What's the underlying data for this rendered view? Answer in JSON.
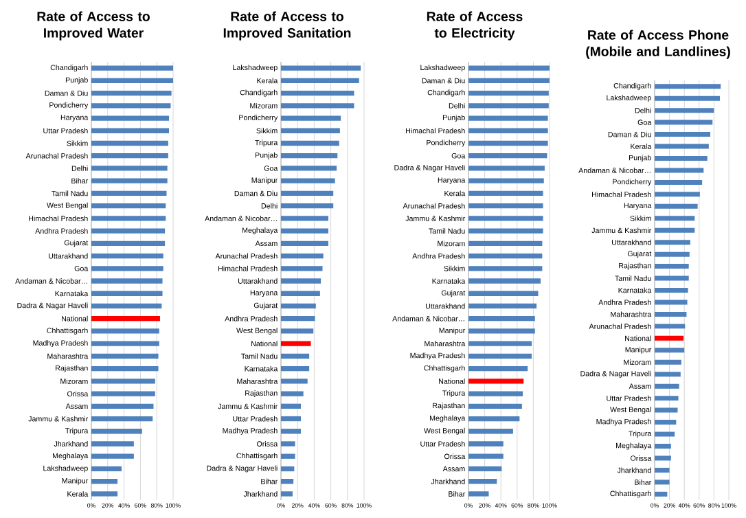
{
  "chart_data": [
    {
      "type": "bar",
      "orientation": "horizontal",
      "title": "Rate of Access to Improved Water",
      "grid": "x",
      "xlim": [
        0,
        100
      ],
      "xticks": [
        {
          "value": 0,
          "label": "0%"
        },
        {
          "value": 20,
          "label": "20%"
        },
        {
          "value": 40,
          "label": "40%"
        },
        {
          "value": 60,
          "label": "60%"
        },
        {
          "value": 80,
          "label": "80%"
        },
        {
          "value": 100,
          "label": "100%"
        }
      ],
      "categories": [
        "Chandigarh",
        "Punjab",
        "Daman & Diu",
        "Pondicherry",
        "Haryana",
        "Uttar Pradesh",
        "Sikkim",
        "Arunachal Pradesh",
        "Delhi",
        "Bihar",
        "Tamil Nadu",
        "West Bengal",
        "Himachal Pradesh",
        "Andhra Pradesh",
        "Gujarat",
        "Uttarakhand",
        "Goa",
        "Andaman & Nicobar…",
        "Karnataka",
        "Dadra & Nagar Haveli",
        "National",
        "Chhattisgarh",
        "Madhya Pradesh",
        "Maharashtra",
        "Rajasthan",
        "Mizoram",
        "Orissa",
        "Assam",
        "Jammu & Kashmir",
        "Tripura",
        "Jharkhand",
        "Meghalaya",
        "Lakshadweep",
        "Manipur",
        "Kerala"
      ],
      "values": [
        100,
        100,
        98,
        97,
        95,
        95,
        94,
        94,
        93,
        93,
        92,
        91,
        91,
        90,
        90,
        88,
        88,
        87,
        87,
        86,
        84,
        83,
        83,
        82,
        82,
        78,
        78,
        76,
        75,
        62,
        52,
        52,
        37,
        32,
        32
      ],
      "colors": [
        "#4f81bd",
        "#4f81bd",
        "#4f81bd",
        "#4f81bd",
        "#4f81bd",
        "#4f81bd",
        "#4f81bd",
        "#4f81bd",
        "#4f81bd",
        "#4f81bd",
        "#4f81bd",
        "#4f81bd",
        "#4f81bd",
        "#4f81bd",
        "#4f81bd",
        "#4f81bd",
        "#4f81bd",
        "#4f81bd",
        "#4f81bd",
        "#4f81bd",
        "#ff0000",
        "#4f81bd",
        "#4f81bd",
        "#4f81bd",
        "#4f81bd",
        "#4f81bd",
        "#4f81bd",
        "#4f81bd",
        "#4f81bd",
        "#4f81bd",
        "#4f81bd",
        "#4f81bd",
        "#4f81bd",
        "#4f81bd",
        "#4f81bd"
      ]
    },
    {
      "type": "bar",
      "orientation": "horizontal",
      "title": "Rate of Access to Improved Sanitation",
      "grid": "x",
      "xlim": [
        0,
        100
      ],
      "xticks": [
        {
          "value": 0,
          "label": "0%"
        },
        {
          "value": 20,
          "label": "20%"
        },
        {
          "value": 40,
          "label": "40%"
        },
        {
          "value": 60,
          "label": "60%"
        },
        {
          "value": 80,
          "label": "80%"
        },
        {
          "value": 100,
          "label": "100%"
        }
      ],
      "categories": [
        "Lakshadweep",
        "Kerala",
        "Chandigarh",
        "Mizoram",
        "Pondicherry",
        "Sikkim",
        "Tripura",
        "Punjab",
        "Goa",
        "Manipur",
        "Daman & Diu",
        "Delhi",
        "Andaman & Nicobar…",
        "Meghalaya",
        "Assam",
        "Arunachal Pradesh",
        "Himachal Pradesh",
        "Uttarakhand",
        "Haryana",
        "Gujarat",
        "Andhra Pradesh",
        "West Bengal",
        "National",
        "Tamil Nadu",
        "Karnataka",
        "Maharashtra",
        "Rajasthan",
        "Jammu & Kashmir",
        "Uttar Pradesh",
        "Madhya Pradesh",
        "Orissa",
        "Chhattisgarh",
        "Dadra & Nagar Haveli",
        "Bihar",
        "Jharkhand"
      ],
      "values": [
        96,
        94,
        88,
        88,
        72,
        71,
        70,
        68,
        67,
        65,
        63,
        63,
        57,
        57,
        57,
        51,
        50,
        48,
        47,
        42,
        41,
        39,
        36,
        34,
        34,
        32,
        27,
        24,
        24,
        24,
        17,
        17,
        16,
        15,
        14
      ],
      "colors": [
        "#4f81bd",
        "#4f81bd",
        "#4f81bd",
        "#4f81bd",
        "#4f81bd",
        "#4f81bd",
        "#4f81bd",
        "#4f81bd",
        "#4f81bd",
        "#4f81bd",
        "#4f81bd",
        "#4f81bd",
        "#4f81bd",
        "#4f81bd",
        "#4f81bd",
        "#4f81bd",
        "#4f81bd",
        "#4f81bd",
        "#4f81bd",
        "#4f81bd",
        "#4f81bd",
        "#4f81bd",
        "#ff0000",
        "#4f81bd",
        "#4f81bd",
        "#4f81bd",
        "#4f81bd",
        "#4f81bd",
        "#4f81bd",
        "#4f81bd",
        "#4f81bd",
        "#4f81bd",
        "#4f81bd",
        "#4f81bd",
        "#4f81bd"
      ]
    },
    {
      "type": "bar",
      "orientation": "horizontal",
      "title": "Rate of Access to Electricity",
      "grid": "x",
      "xlim": [
        0,
        100
      ],
      "xticks": [
        {
          "value": 0,
          "label": "0%"
        },
        {
          "value": 20,
          "label": "20%"
        },
        {
          "value": 40,
          "label": "40%"
        },
        {
          "value": 60,
          "label": "60%"
        },
        {
          "value": 80,
          "label": "80%"
        },
        {
          "value": 100,
          "label": "100%"
        }
      ],
      "categories": [
        "Lakshadweep",
        "Daman & Diu",
        "Chandigarh",
        "Delhi",
        "Punjab",
        "Himachal Pradesh",
        "Pondicherry",
        "Goa",
        "Dadra & Nagar Haveli",
        "Haryana",
        "Kerala",
        "Arunachal Pradesh",
        "Jammu & Kashmir",
        "Tamil Nadu",
        "Mizoram",
        "Andhra Pradesh",
        "Sikkim",
        "Karnataka",
        "Gujarat",
        "Uttarakhand",
        "Andaman & Nicobar…",
        "Manipur",
        "Maharashtra",
        "Madhya Pradesh",
        "Chhattisgarh",
        "National",
        "Tripura",
        "Rajasthan",
        "Meghalaya",
        "West Bengal",
        "Uttar Pradesh",
        "Orissa",
        "Assam",
        "Jharkhand",
        "Bihar"
      ],
      "values": [
        100,
        100,
        99,
        99,
        98,
        98,
        98,
        97,
        94,
        93,
        92,
        92,
        92,
        92,
        91,
        91,
        91,
        89,
        86,
        84,
        82,
        82,
        78,
        78,
        73,
        68,
        67,
        66,
        63,
        55,
        43,
        43,
        41,
        35,
        25
      ],
      "colors": [
        "#4f81bd",
        "#4f81bd",
        "#4f81bd",
        "#4f81bd",
        "#4f81bd",
        "#4f81bd",
        "#4f81bd",
        "#4f81bd",
        "#4f81bd",
        "#4f81bd",
        "#4f81bd",
        "#4f81bd",
        "#4f81bd",
        "#4f81bd",
        "#4f81bd",
        "#4f81bd",
        "#4f81bd",
        "#4f81bd",
        "#4f81bd",
        "#4f81bd",
        "#4f81bd",
        "#4f81bd",
        "#4f81bd",
        "#4f81bd",
        "#4f81bd",
        "#ff0000",
        "#4f81bd",
        "#4f81bd",
        "#4f81bd",
        "#4f81bd",
        "#4f81bd",
        "#4f81bd",
        "#4f81bd",
        "#4f81bd",
        "#4f81bd"
      ]
    },
    {
      "type": "bar",
      "orientation": "horizontal",
      "title": "Rate of Access Phone (Mobile and Landlines)",
      "grid": "x",
      "xlim": [
        0,
        100
      ],
      "xticks": [
        {
          "value": 0,
          "label": "0%"
        },
        {
          "value": 20,
          "label": "20%"
        },
        {
          "value": 40,
          "label": "40%"
        },
        {
          "value": 60,
          "label": "60%"
        },
        {
          "value": 80,
          "label": "80%"
        },
        {
          "value": 100,
          "label": "100%"
        }
      ],
      "categories": [
        "Chandigarh",
        "Lakshadweep",
        "Delhi",
        "Goa",
        "Daman & Diu",
        "Kerala",
        "Punjab",
        "Andaman & Nicobar…",
        "Pondicherry",
        "Himachal Pradesh",
        "Haryana",
        "Sikkim",
        "Jammu & Kashmir",
        "Uttarakhand",
        "Gujarat",
        "Rajasthan",
        "Tamil Nadu",
        "Karnataka",
        "Andhra Pradesh",
        "Maharashtra",
        "Arunachal Pradesh",
        "National",
        "Manipur",
        "Mizoram",
        "Dadra & Nagar Haveli",
        "Assam",
        "Uttar Pradesh",
        "West Bengal",
        "Madhya Pradesh",
        "Tripura",
        "Meghalaya",
        "Orissa",
        "Jharkhand",
        "Bihar",
        "Chhattisgarh"
      ],
      "values": [
        89,
        88,
        80,
        78,
        75,
        73,
        71,
        66,
        64,
        61,
        58,
        54,
        54,
        48,
        47,
        46,
        46,
        45,
        44,
        43,
        41,
        39,
        40,
        36,
        35,
        33,
        32,
        31,
        29,
        27,
        22,
        22,
        20,
        20,
        17
      ],
      "colors": [
        "#4f81bd",
        "#4f81bd",
        "#4f81bd",
        "#4f81bd",
        "#4f81bd",
        "#4f81bd",
        "#4f81bd",
        "#4f81bd",
        "#4f81bd",
        "#4f81bd",
        "#4f81bd",
        "#4f81bd",
        "#4f81bd",
        "#4f81bd",
        "#4f81bd",
        "#4f81bd",
        "#4f81bd",
        "#4f81bd",
        "#4f81bd",
        "#4f81bd",
        "#4f81bd",
        "#ff0000",
        "#4f81bd",
        "#4f81bd",
        "#4f81bd",
        "#4f81bd",
        "#4f81bd",
        "#4f81bd",
        "#4f81bd",
        "#4f81bd",
        "#4f81bd",
        "#4f81bd",
        "#4f81bd",
        "#4f81bd",
        "#4f81bd"
      ]
    }
  ]
}
